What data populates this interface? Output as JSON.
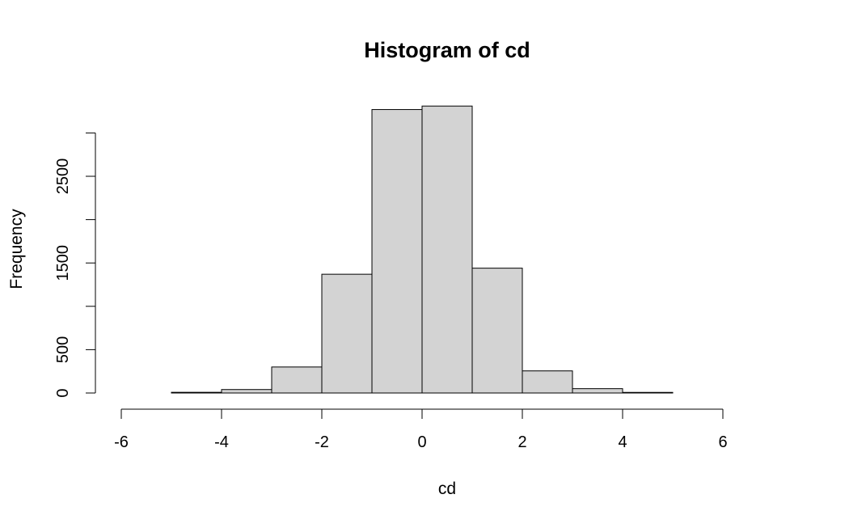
{
  "chart_data": {
    "type": "bar",
    "title": "Histogram of cd",
    "xlabel": "cd",
    "ylabel": "Frequency",
    "x_ticks": [
      -6,
      -4,
      -2,
      0,
      2,
      4,
      6
    ],
    "y_ticks": [
      0,
      500,
      1000,
      1500,
      2000,
      2500,
      3000
    ],
    "y_tick_labels": [
      "0",
      "500",
      "",
      "1500",
      "",
      "2500",
      ""
    ],
    "bins": [
      {
        "start": -6,
        "end": -5,
        "count": 0
      },
      {
        "start": -5,
        "end": -4,
        "count": 8
      },
      {
        "start": -4,
        "end": -3,
        "count": 40
      },
      {
        "start": -3,
        "end": -2,
        "count": 300
      },
      {
        "start": -2,
        "end": -1,
        "count": 1370
      },
      {
        "start": -1,
        "end": 0,
        "count": 3270
      },
      {
        "start": 0,
        "end": 1,
        "count": 3310
      },
      {
        "start": 1,
        "end": 2,
        "count": 1440
      },
      {
        "start": 2,
        "end": 3,
        "count": 255
      },
      {
        "start": 3,
        "end": 4,
        "count": 50
      },
      {
        "start": 4,
        "end": 5,
        "count": 7
      },
      {
        "start": 5,
        "end": 6,
        "count": 0
      },
      {
        "start": 6,
        "end": 7,
        "count": 0
      }
    ],
    "xlim": [
      -6,
      7
    ],
    "ylim": [
      0,
      3310
    ],
    "bar_color": "#d3d3d3",
    "grid": false
  }
}
